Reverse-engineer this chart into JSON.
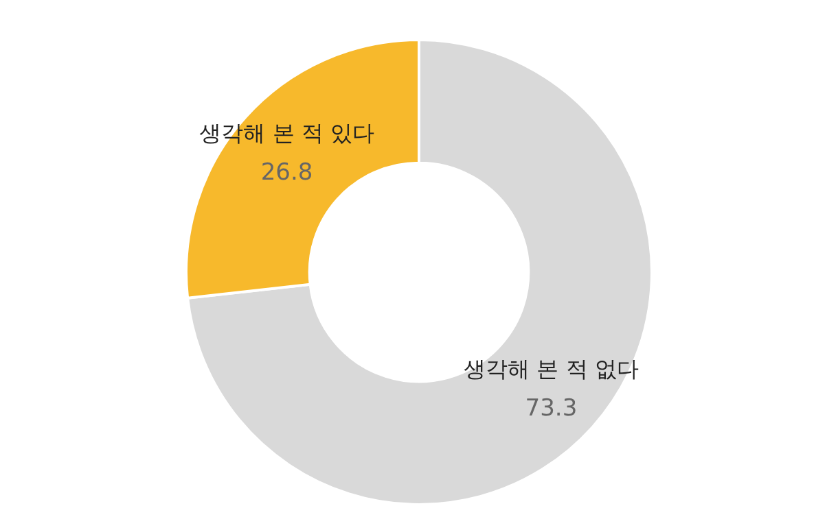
{
  "chart_data": {
    "type": "donut",
    "categories": [
      "생각해 본 적 없다",
      "생각해 본 적 있다"
    ],
    "values": [
      73.3,
      26.8
    ],
    "colors": [
      "#d9d9d9",
      "#f7b92c"
    ],
    "data_labels": true,
    "legend": false
  }
}
